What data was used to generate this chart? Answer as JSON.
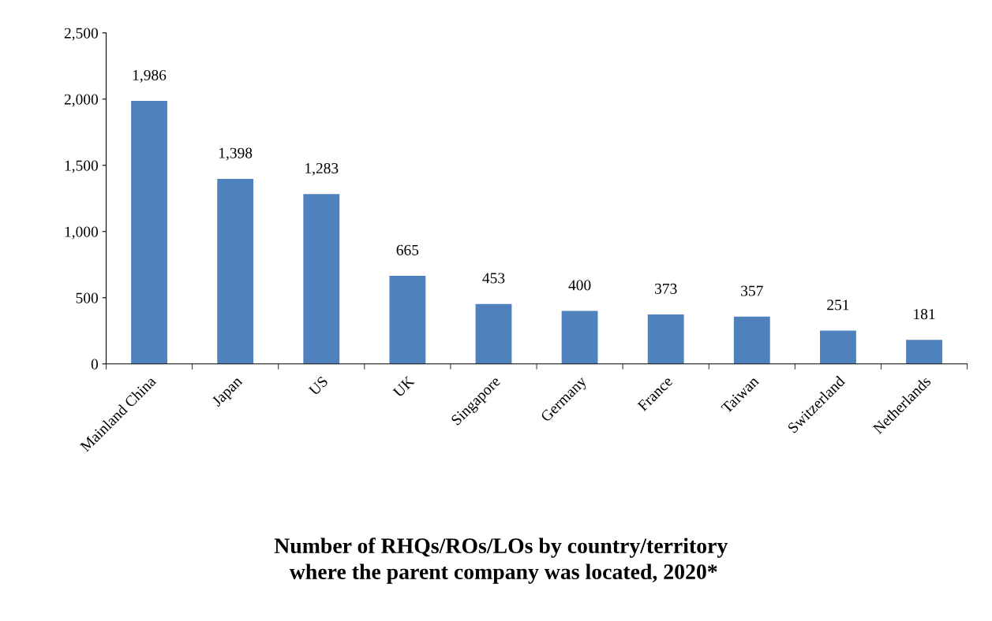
{
  "chart_data": {
    "type": "bar",
    "title": "Number of RHQs/ROs/LOs by country/territory\n where the parent company was located, 2020*",
    "categories": [
      "Mainland China",
      "Japan",
      "US",
      "UK",
      "Singapore",
      "Germany",
      "France",
      "Taiwan",
      "Switzerland",
      "Netherlands"
    ],
    "values": [
      1986,
      1398,
      1283,
      665,
      453,
      400,
      373,
      357,
      251,
      181
    ],
    "color": "#4f81bd",
    "ylim": [
      0,
      2500
    ],
    "yticks": [
      {
        "value": 0,
        "label": "0"
      },
      {
        "value": 500,
        "label": "500"
      },
      {
        "value": 1000,
        "label": "1,000"
      },
      {
        "value": 1500,
        "label": "1,500"
      },
      {
        "value": 2000,
        "label": "2,000"
      },
      {
        "value": 2500,
        "label": "2,500"
      }
    ],
    "value_labels": [
      "1,986",
      "1,398",
      "1,283",
      "665",
      "453",
      "400",
      "373",
      "357",
      "251",
      "181"
    ],
    "grid": false,
    "legend": false
  }
}
